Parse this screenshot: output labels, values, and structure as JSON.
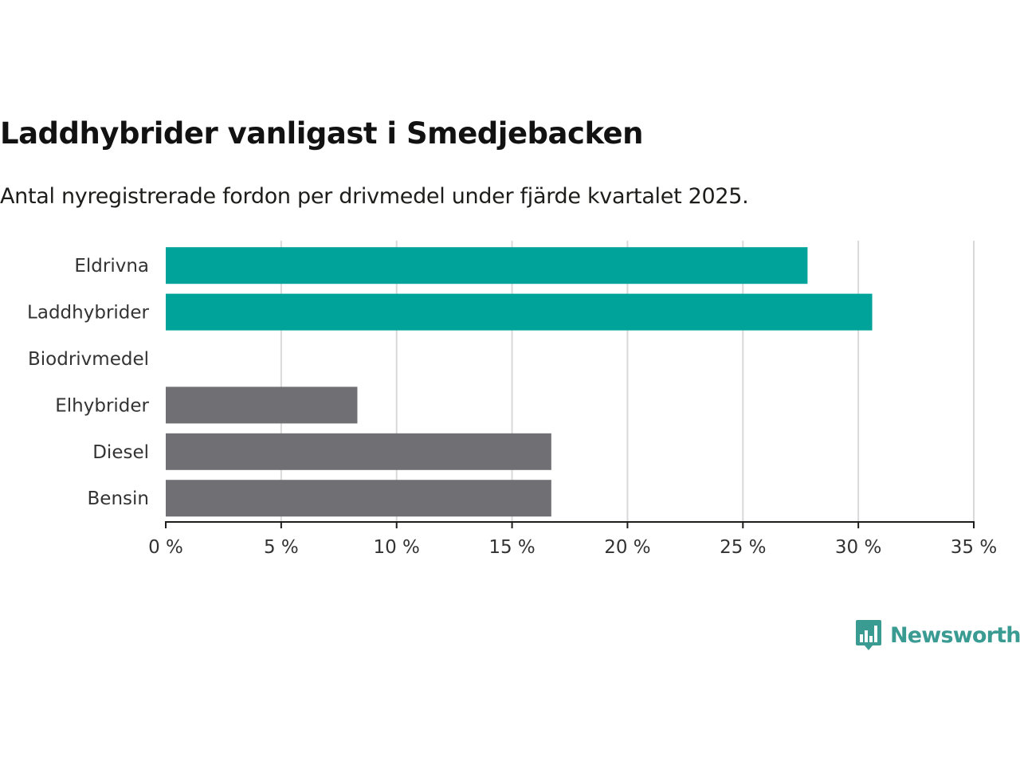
{
  "chart_data": {
    "type": "bar",
    "orientation": "horizontal",
    "title": "Laddhybrider vanligast i Smedjebacken",
    "subtitle": "Antal nyregistrerade fordon per drivmedel under fjärde kvartalet 2025.",
    "categories": [
      "Eldrivna",
      "Laddhybrider",
      "Biodrivmedel",
      "Elhybrider",
      "Diesel",
      "Bensin"
    ],
    "values": [
      27.8,
      30.6,
      0,
      8.3,
      16.7,
      16.7
    ],
    "bar_colors": [
      "#00a39a",
      "#00a39a",
      "#706f74",
      "#706f74",
      "#706f74",
      "#706f74"
    ],
    "xlim": [
      0,
      35
    ],
    "x_ticks": [
      0,
      5,
      10,
      15,
      20,
      25,
      30,
      35
    ],
    "x_tick_labels": [
      "0 %",
      "5 %",
      "10 %",
      "15 %",
      "20 %",
      "25 %",
      "30 %",
      "35 %"
    ],
    "xlabel": "",
    "ylabel": "",
    "grid": true
  },
  "branding": {
    "logo_text": "Newsworthy",
    "logo_icon": "bar-chart-speech-bubble-icon",
    "logo_color": "#3a9b92"
  }
}
